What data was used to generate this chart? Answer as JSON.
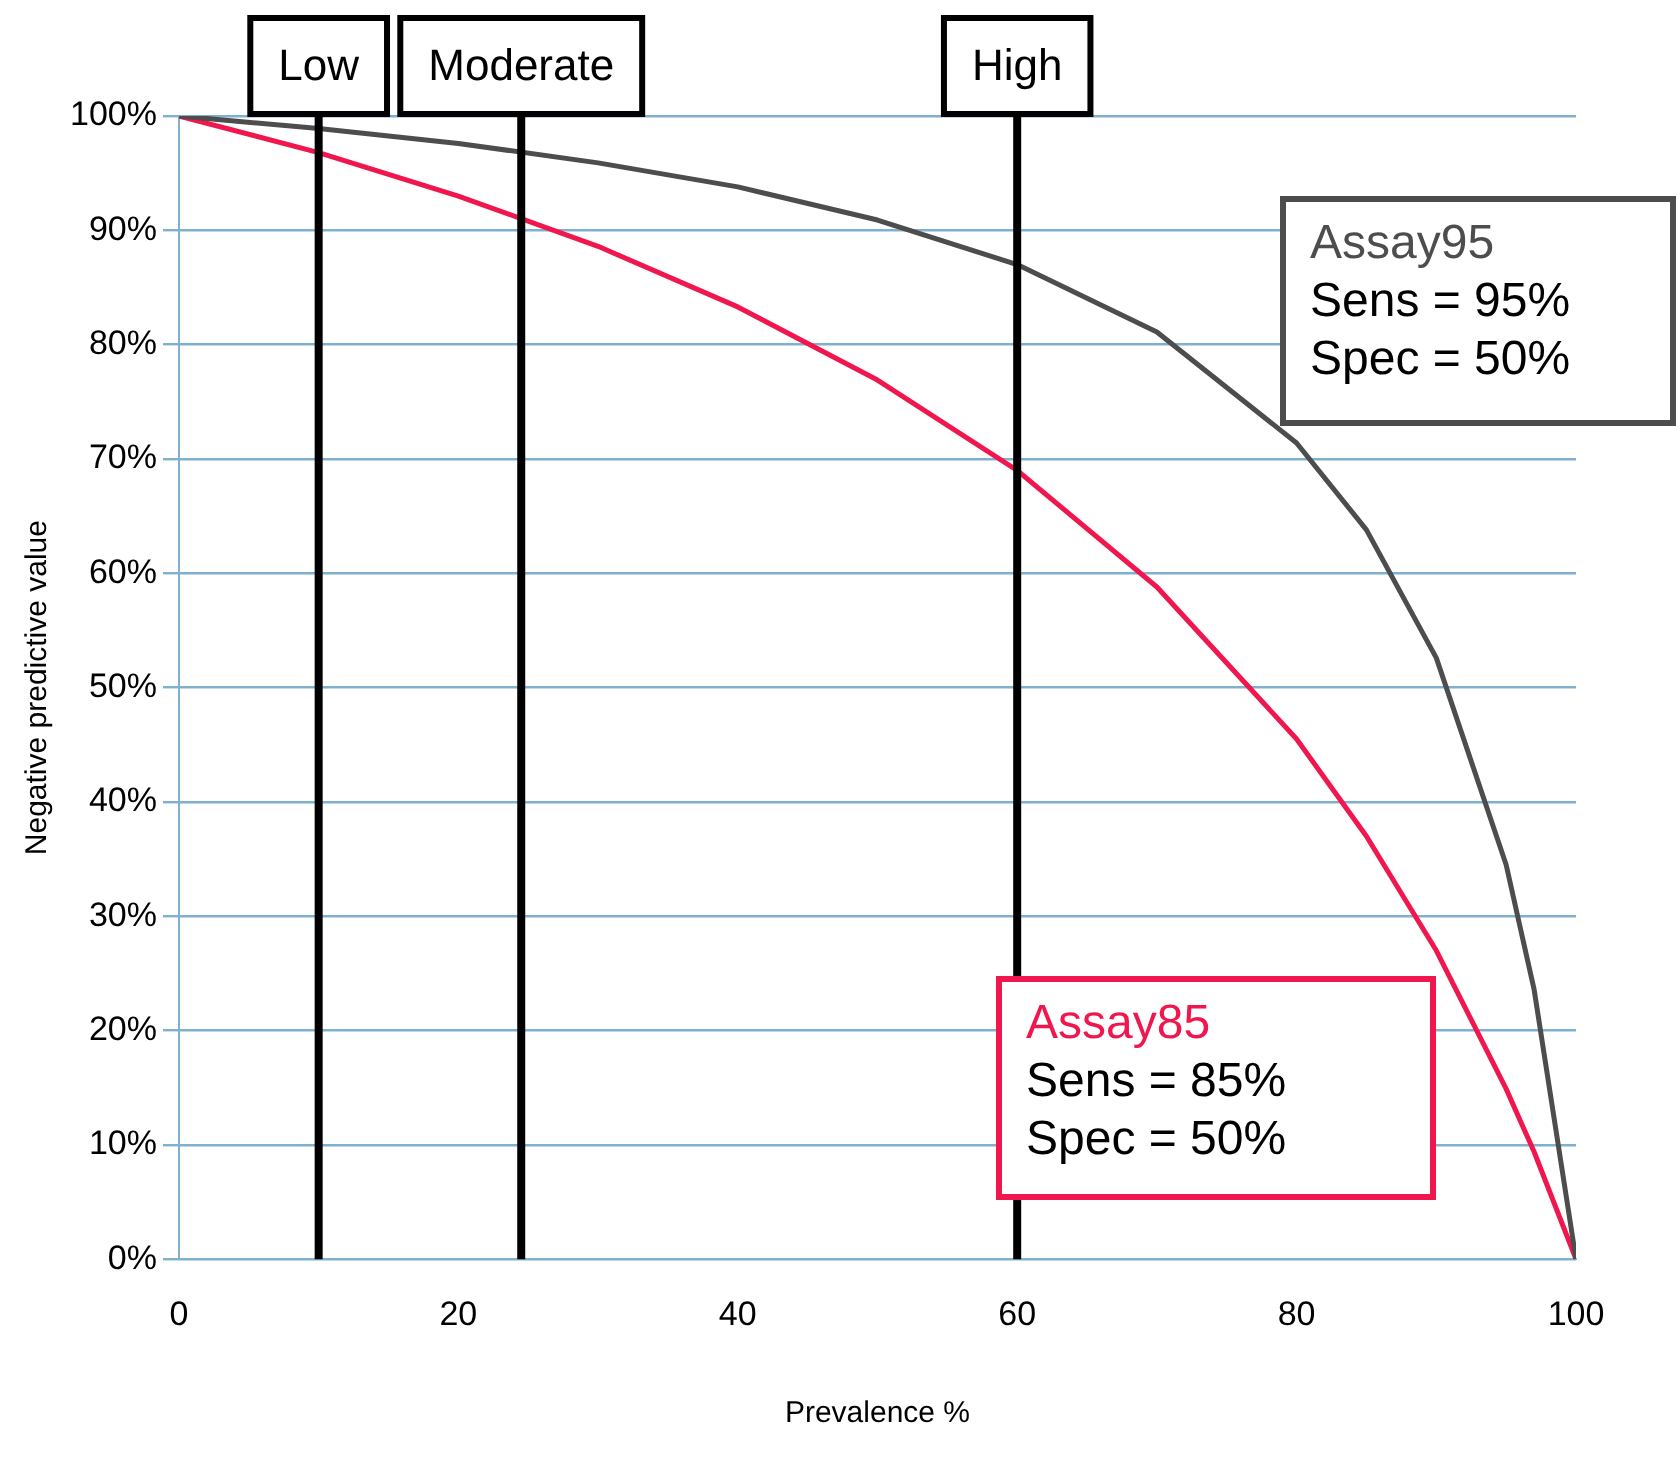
{
  "chart_data": {
    "type": "line",
    "xlabel": "Prevalence %",
    "ylabel": "Negative predictive value",
    "xlim": [
      0,
      100
    ],
    "xticks": [
      0,
      20,
      40,
      60,
      80,
      100
    ],
    "ylim": [
      0,
      100
    ],
    "yticks": [
      {
        "value": 0,
        "label": "0%"
      },
      {
        "value": 10,
        "label": "10%"
      },
      {
        "value": 20,
        "label": "20%"
      },
      {
        "value": 30,
        "label": "30%"
      },
      {
        "value": 40,
        "label": "40%"
      },
      {
        "value": 50,
        "label": "50%"
      },
      {
        "value": 60,
        "label": "60%"
      },
      {
        "value": 70,
        "label": "70%"
      },
      {
        "value": 80,
        "label": "80%"
      },
      {
        "value": 90,
        "label": "90%"
      },
      {
        "value": 100,
        "label": "100%"
      }
    ],
    "grid": "y",
    "legend": false,
    "x": [
      0,
      10,
      20,
      30,
      40,
      50,
      60,
      70,
      80,
      85,
      90,
      95,
      97,
      100
    ],
    "series": [
      {
        "name": "Assay95",
        "color": "#4d4d4d",
        "values": [
          100,
          98.9,
          97.6,
          95.9,
          93.8,
          90.9,
          87,
          81.1,
          71.4,
          63.8,
          52.6,
          34.5,
          23.6,
          0
        ]
      },
      {
        "name": "Assay85",
        "color": "#f0174f",
        "values": [
          100,
          96.8,
          93,
          88.6,
          83.3,
          76.9,
          69,
          58.8,
          45.5,
          37,
          27,
          14.9,
          9.4,
          0
        ]
      }
    ],
    "ref_lines": [
      {
        "axis": "x",
        "value": 10,
        "label": "Low",
        "color": "#000000"
      },
      {
        "axis": "x",
        "value": 24.5,
        "label": "Moderate",
        "color": "#000000"
      },
      {
        "axis": "x",
        "value": 60,
        "label": "High",
        "color": "#000000"
      }
    ],
    "annotations": [
      "Sens = 95%\nSpec = 50%",
      "Sens = 85%\nSpec = 50%"
    ]
  }
}
